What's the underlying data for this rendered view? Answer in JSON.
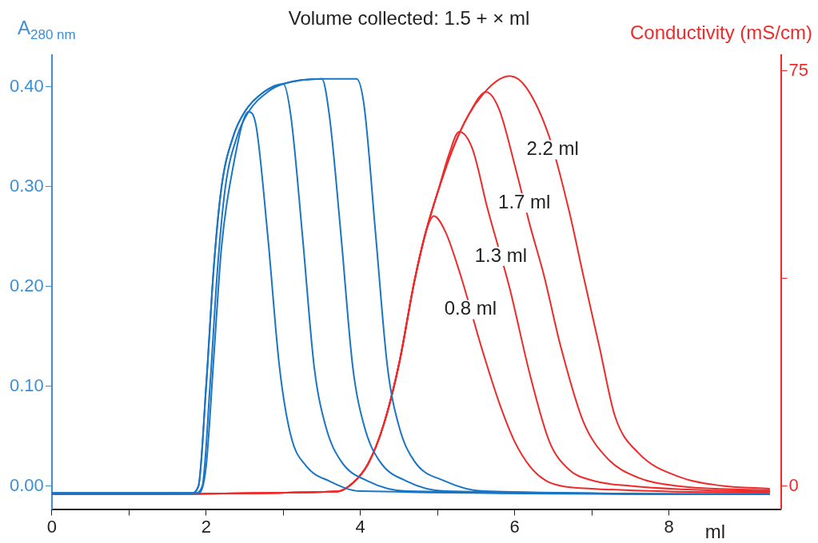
{
  "chart_data": {
    "type": "line",
    "title": "Volume collected: 1.5 + × ml",
    "xlabel": "ml",
    "ylabel": "A$_{280 nm}$",
    "y2label": "Conductivity (mS/cm)",
    "xlim": [
      0,
      9.45
    ],
    "xticks": [
      0,
      {
        "value": 1,
        "label": null
      },
      2,
      {
        "value": 3,
        "label": null
      },
      4,
      {
        "value": 5,
        "label": null
      },
      6,
      {
        "value": 7,
        "label": null
      },
      8
    ],
    "ylim": [
      -0.023,
      0.432
    ],
    "yticks": [
      {
        "value": 0,
        "label": "0.00"
      },
      {
        "value": 0.1,
        "label": "0.10"
      },
      {
        "value": 0.2,
        "label": "0.20"
      },
      {
        "value": 0.3,
        "label": "0.30"
      },
      {
        "value": 0.4,
        "label": "0.40"
      }
    ],
    "y2lim": [
      -4.2,
      77.9
    ],
    "y2ticks": [
      0,
      {
        "value": 37.5,
        "label": null
      },
      75
    ],
    "grid": false,
    "legend": false,
    "marker": "none",
    "line_style": "solid",
    "series": [
      {
        "color": "#1a75c4",
        "x": [
          0,
          1.9,
          2.0,
          2.1,
          2.2,
          2.35,
          2.55,
          2.65,
          2.8,
          2.95,
          3.1,
          3.3,
          3.6,
          4.0,
          9.3
        ],
        "values": [
          -0.007,
          -0.007,
          0.02,
          0.13,
          0.24,
          0.32,
          0.375,
          0.36,
          0.25,
          0.12,
          0.05,
          0.02,
          0.005,
          -0.005,
          -0.008
        ]
      },
      {
        "color": "#1a75c4",
        "x": [
          0,
          1.8,
          1.9,
          2.0,
          2.1,
          2.2,
          2.35,
          2.5,
          2.75,
          3.0,
          3.1,
          3.25,
          3.4,
          3.55,
          3.75,
          4.1,
          4.6,
          9.3
        ],
        "values": [
          -0.007,
          -0.007,
          0.0,
          0.1,
          0.22,
          0.3,
          0.35,
          0.375,
          0.395,
          0.403,
          0.37,
          0.25,
          0.12,
          0.06,
          0.025,
          0.005,
          -0.005,
          -0.008
        ]
      },
      {
        "color": "#1a75c4",
        "x": [
          0,
          1.8,
          1.9,
          2.0,
          2.1,
          2.2,
          2.35,
          2.5,
          2.75,
          3.0,
          3.5,
          3.6,
          3.75,
          3.9,
          4.05,
          4.25,
          4.6,
          5.1,
          9.3
        ],
        "values": [
          -0.007,
          -0.007,
          0.0,
          0.1,
          0.22,
          0.3,
          0.35,
          0.375,
          0.395,
          0.403,
          0.408,
          0.37,
          0.25,
          0.12,
          0.06,
          0.025,
          0.005,
          -0.005,
          -0.008
        ]
      },
      {
        "color": "#1a75c4",
        "x": [
          0,
          1.85,
          1.95,
          2.05,
          2.15,
          2.25,
          2.4,
          2.55,
          2.8,
          3.0,
          3.5,
          3.95,
          4.05,
          4.2,
          4.35,
          4.5,
          4.7,
          5.1,
          5.6,
          9.3
        ],
        "values": [
          -0.007,
          -0.007,
          0.0,
          0.1,
          0.22,
          0.3,
          0.35,
          0.375,
          0.395,
          0.403,
          0.408,
          0.408,
          0.38,
          0.25,
          0.12,
          0.06,
          0.025,
          0.005,
          -0.005,
          -0.008
        ]
      },
      {
        "name": "0.8 ml",
        "color": "#ee2a2a",
        "axis": "y2",
        "x": [
          0,
          3.7,
          3.9,
          4.1,
          4.3,
          4.5,
          4.7,
          4.85,
          4.95,
          5.1,
          5.3,
          5.57,
          5.8,
          6.0,
          6.2,
          6.4,
          6.6,
          7.0,
          8.0,
          9.3
        ],
        "values": [
          -1.5,
          -1,
          0.5,
          4,
          11,
          22,
          37,
          46,
          48.8,
          46,
          38,
          25,
          15,
          8,
          3.5,
          1,
          0,
          -0.5,
          -1,
          -1.2
        ]
      },
      {
        "name": "1.3 ml",
        "color": "#ee2a2a",
        "axis": "y2",
        "x": [
          0,
          3.7,
          3.9,
          4.1,
          4.3,
          4.5,
          4.7,
          4.85,
          5.0,
          5.15,
          5.28,
          5.45,
          5.65,
          5.93,
          6.2,
          6.45,
          6.7,
          7.0,
          7.5,
          8.5,
          9.3
        ],
        "values": [
          -1.5,
          -1,
          0.5,
          4,
          11,
          22,
          37,
          46,
          53,
          60,
          64,
          61,
          50,
          36,
          20,
          8,
          3,
          1,
          0,
          -0.8,
          -1
        ]
      },
      {
        "name": "1.7 ml",
        "color": "#ee2a2a",
        "axis": "y2",
        "x": [
          0,
          3.7,
          3.9,
          4.1,
          4.3,
          4.5,
          4.7,
          4.85,
          5.0,
          5.2,
          5.4,
          5.63,
          5.8,
          6.0,
          6.2,
          6.38,
          6.6,
          6.89,
          7.2,
          7.6,
          8.1,
          9.3
        ],
        "values": [
          -1.5,
          -1,
          0.5,
          4,
          11,
          22,
          37,
          46,
          53,
          61,
          67,
          71.2,
          68,
          58,
          47,
          38,
          25,
          11.6,
          5,
          1.5,
          0,
          -0.8
        ]
      },
      {
        "name": "2.2 ml",
        "color": "#ee2a2a",
        "axis": "y2",
        "x": [
          0,
          3.7,
          3.9,
          4.1,
          4.3,
          4.5,
          4.7,
          4.85,
          5.0,
          5.2,
          5.4,
          5.6,
          5.8,
          5.94,
          6.15,
          6.45,
          6.7,
          6.89,
          7.1,
          7.3,
          7.6,
          8.14,
          8.7,
          9.3
        ],
        "values": [
          -1.5,
          -1,
          0.5,
          4,
          11,
          22,
          37,
          46,
          53,
          61,
          67,
          71,
          73.5,
          74.1,
          72,
          63,
          50,
          38,
          25,
          12.6,
          6,
          1.6,
          0,
          -0.5
        ]
      }
    ]
  }
}
